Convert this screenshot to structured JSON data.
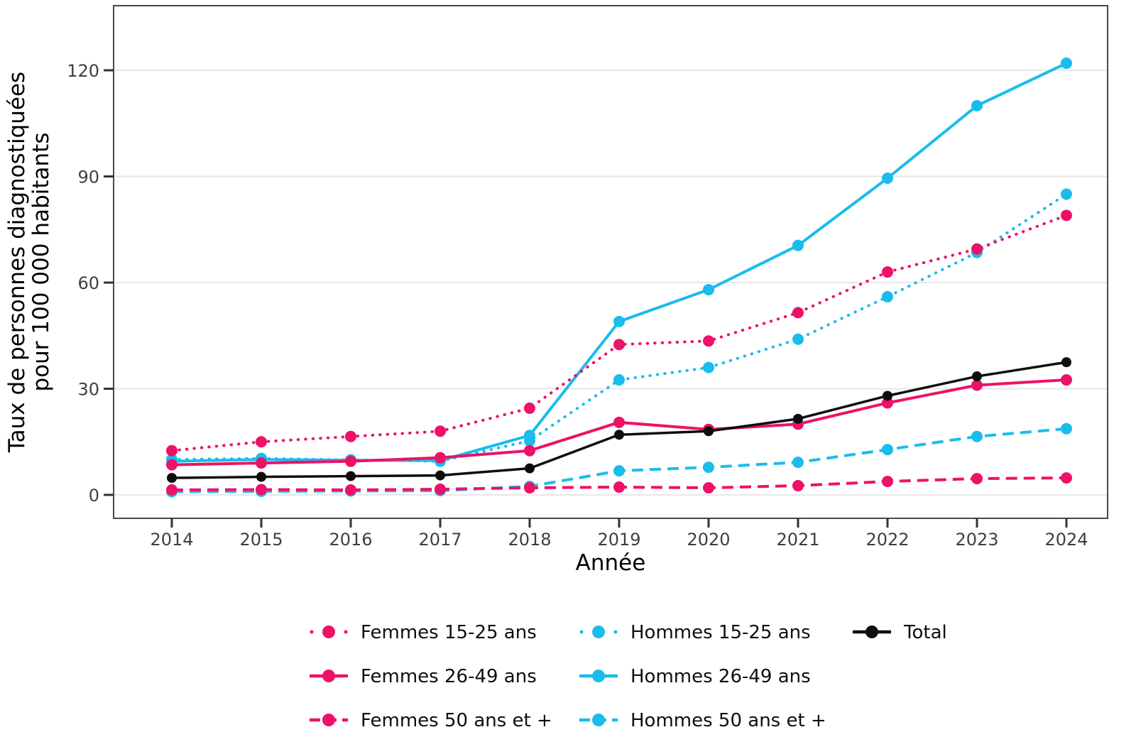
{
  "chart_data": {
    "type": "line",
    "title": "",
    "xlabel": "Année",
    "ylabel_line1": "Taux de personnes diagnostiquées",
    "ylabel_line2": "pour 100 000 habitants",
    "x": [
      2014,
      2015,
      2016,
      2017,
      2018,
      2019,
      2020,
      2021,
      2022,
      2023,
      2024
    ],
    "yticks": [
      0,
      30,
      60,
      90,
      120
    ],
    "ylim": [
      -7,
      138
    ],
    "grid": true,
    "legend_position": "bottom",
    "colors": {
      "femmes": "#EE1168",
      "hommes": "#1ABCEC",
      "total": "#0E0E0E",
      "gridline": "#E7E7E7",
      "axis_border": "#4A4A4A",
      "tick_text": "#3F3F3F"
    },
    "series": [
      {
        "name": "Femmes 15-25 ans",
        "color": "#EE1168",
        "style": "dotted",
        "values": [
          12.5,
          15.0,
          16.5,
          18.0,
          24.5,
          42.5,
          43.5,
          51.5,
          63.0,
          69.5,
          79.0
        ]
      },
      {
        "name": "Femmes 26-49 ans",
        "color": "#EE1168",
        "style": "solid",
        "values": [
          8.5,
          9.0,
          9.5,
          10.5,
          12.5,
          20.5,
          18.5,
          20.0,
          26.0,
          31.0,
          32.5
        ]
      },
      {
        "name": "Femmes 50 ans et +",
        "color": "#EE1168",
        "style": "dashed",
        "values": [
          1.4,
          1.5,
          1.4,
          1.6,
          2.0,
          2.2,
          2.0,
          2.6,
          3.8,
          4.6,
          4.8
        ]
      },
      {
        "name": "Hommes 15-25 ans",
        "color": "#1ABCEC",
        "style": "dotted",
        "values": [
          10.0,
          10.3,
          9.9,
          9.5,
          15.3,
          32.5,
          36.0,
          44.0,
          56.0,
          68.5,
          85.0
        ]
      },
      {
        "name": "Hommes 26-49 ans",
        "color": "#1ABCEC",
        "style": "solid",
        "values": [
          9.5,
          10.0,
          9.8,
          9.7,
          16.8,
          49.0,
          58.0,
          70.5,
          89.5,
          110.0,
          122.0
        ]
      },
      {
        "name": "Hommes 50 ans et +",
        "color": "#1ABCEC",
        "style": "dashed",
        "values": [
          0.9,
          1.0,
          1.1,
          1.2,
          2.4,
          6.8,
          7.8,
          9.2,
          12.8,
          16.5,
          18.7
        ]
      },
      {
        "name": "Total",
        "color": "#0E0E0E",
        "style": "solid",
        "values": [
          4.8,
          5.1,
          5.3,
          5.5,
          7.5,
          17.0,
          18.0,
          21.5,
          28.0,
          33.5,
          37.5
        ]
      }
    ],
    "draw_order": [
      3,
      4,
      5,
      0,
      1,
      2,
      6
    ],
    "legend_columns": [
      [
        0,
        1,
        2
      ],
      [
        3,
        4,
        5
      ],
      [
        6
      ]
    ]
  }
}
